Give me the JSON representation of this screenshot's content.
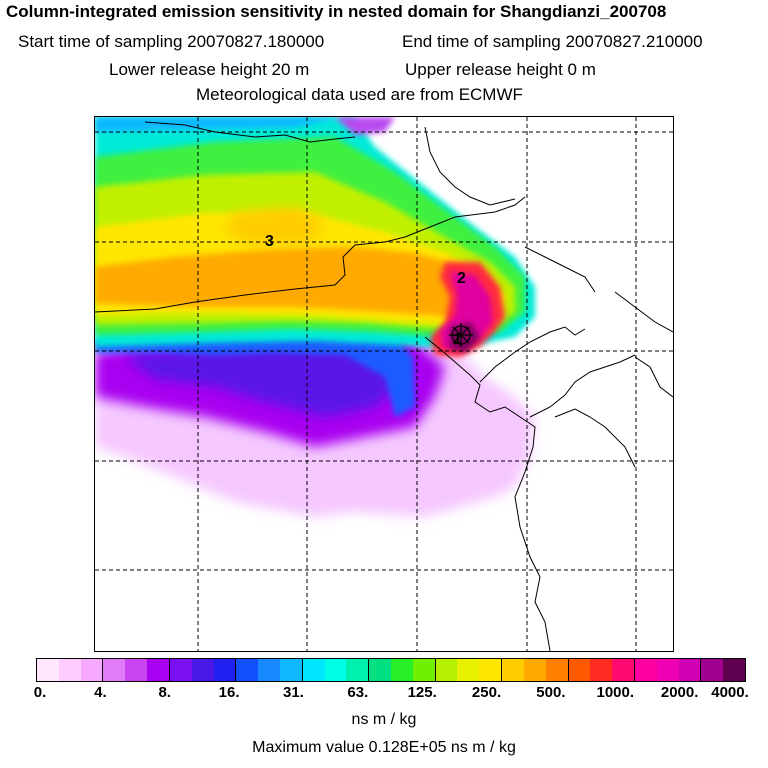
{
  "header": {
    "title": "Column-integrated emission sensitivity in nested domain for Shangdianzi_200708",
    "start_time": "Start time of sampling 20070827.180000",
    "end_time": "End time of sampling 20070827.210000",
    "lower_release": "Lower release height   20 m",
    "upper_release": "Upper release height    0 m",
    "met_data": "Meteorological data used are from ECMWF"
  },
  "map": {
    "markers": [
      {
        "label": "1",
        "name": "receptor-label-1"
      },
      {
        "label": "2",
        "name": "marker-label-2"
      },
      {
        "label": "3",
        "name": "marker-label-3"
      }
    ]
  },
  "legend": {
    "colors": [
      "#ffe6ff",
      "#ffccff",
      "#f7a8ff",
      "#e07cf5",
      "#c844f0",
      "#a800f0",
      "#7a10f0",
      "#4a18e6",
      "#2020f0",
      "#1050ff",
      "#1888ff",
      "#10b8ff",
      "#00e6ff",
      "#00ffe6",
      "#00f0b0",
      "#00e080",
      "#28f028",
      "#70f000",
      "#b4f000",
      "#e6f000",
      "#ffe600",
      "#ffcc00",
      "#ffaa00",
      "#ff8000",
      "#ff5a00",
      "#ff2a20",
      "#ff0a70",
      "#ff00a0",
      "#f000b4",
      "#d000b4",
      "#a00090",
      "#600050"
    ],
    "ticks": [
      "0.",
      "4.",
      "8.",
      "16.",
      "31.",
      "63.",
      "125.",
      "250.",
      "500.",
      "1000.",
      "2000.",
      "4000."
    ],
    "units": "ns m / kg",
    "max_value": "Maximum value  0.128E+05 ns m / kg"
  }
}
